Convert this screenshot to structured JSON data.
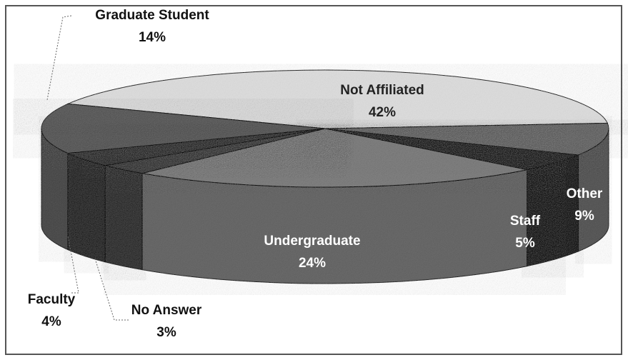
{
  "chart_data": {
    "type": "pie",
    "categories": [
      "Not Affiliated",
      "Other",
      "Staff",
      "Undergraduate",
      "No Answer",
      "Faculty",
      "Graduate Student"
    ],
    "values": [
      42,
      9,
      5,
      24,
      3,
      4,
      14
    ],
    "value_labels": [
      "42%",
      "9%",
      "5%",
      "24%",
      "3%",
      "4%",
      "14%"
    ],
    "colors": [
      "#d9d9d9",
      "#5a5a5a",
      "#141414",
      "#6f6f6f",
      "#2e2e2e",
      "#262626",
      "#4a4a4a"
    ]
  }
}
